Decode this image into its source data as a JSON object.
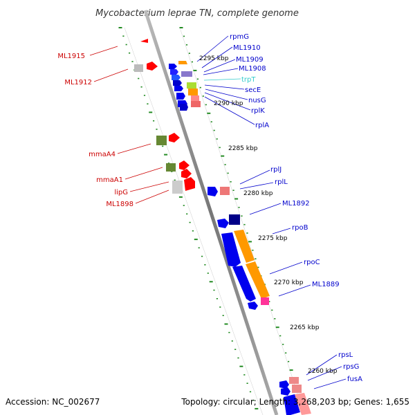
{
  "title": "Mycobacterium leprae TN, complete genome",
  "footer": {
    "accession": "Accession: NC_002677",
    "topology": "Topology: circular; Length: 3,268,203 bp; Genes: 1,655"
  },
  "kbp_labels": [
    "2295 kbp",
    "2290 kbp",
    "2285 kbp",
    "2280 kbp",
    "2275 kbp",
    "2270 kbp",
    "2265 kbp",
    "2260 kbp"
  ],
  "genes_left": [
    "ML1915",
    "ML1912",
    "mmaA4",
    "mmaA1",
    "lipG",
    "ML1898"
  ],
  "genes_right": [
    "rpmG",
    "ML1910",
    "ML1909",
    "ML1908",
    "trpT",
    "secE",
    "nusG",
    "rplK",
    "rplA",
    "rplJ",
    "rplL",
    "ML1892",
    "rpoB",
    "rpoC",
    "ML1889",
    "rpsL",
    "rpsG",
    "fusA"
  ],
  "colors": {
    "left_label": "#cc0000",
    "right_label": "#0000cc",
    "trna_label": "#33cccc",
    "forward_gene": "#ff0000",
    "reverse_gene": "#0000ee",
    "orange_feature": "#ff9900",
    "olive_feature": "#668833",
    "pink_feature": "#ff3399",
    "backbone": "#888888",
    "tick": "#228b22"
  }
}
